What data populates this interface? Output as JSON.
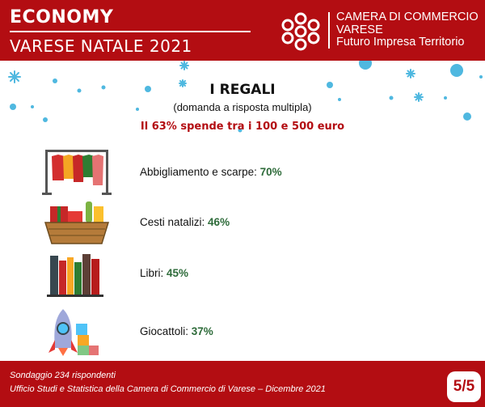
{
  "header": {
    "title": "ECONOMY",
    "subtitle": "VARESE NATALE 2021",
    "org_lines": [
      "CAMERA DI COMMERCIO",
      "VARESE",
      "Futuro Impresa Territorio"
    ],
    "logo_icon": "chamber-of-commerce-logo-icon",
    "brand_color": "#b30d12"
  },
  "main": {
    "title": "I REGALI",
    "subtitle": "(domanda a risposta multipla)",
    "highlight": "Il 63% spende tra i 100 e 500 euro",
    "items": [
      {
        "icon": "clothes-rack-icon",
        "label": "Abbigliamento e scarpe: ",
        "value": "70%"
      },
      {
        "icon": "gift-basket-icon",
        "label": "Cesti natalizi: ",
        "value": "46%"
      },
      {
        "icon": "books-icon",
        "label": "Libri: ",
        "value": "45%"
      },
      {
        "icon": "toy-rocket-blocks-icon",
        "label": "Giocattoli: ",
        "value": "37%"
      }
    ],
    "value_color": "#2e6b3a",
    "snow_color": "#4fb8e0"
  },
  "footer": {
    "line1": "Sondaggio 234 rispondenti",
    "line2": "Ufficio Studi e Statistica della Camera di Commercio di Varese – Dicembre 2021",
    "page": "5/5"
  }
}
